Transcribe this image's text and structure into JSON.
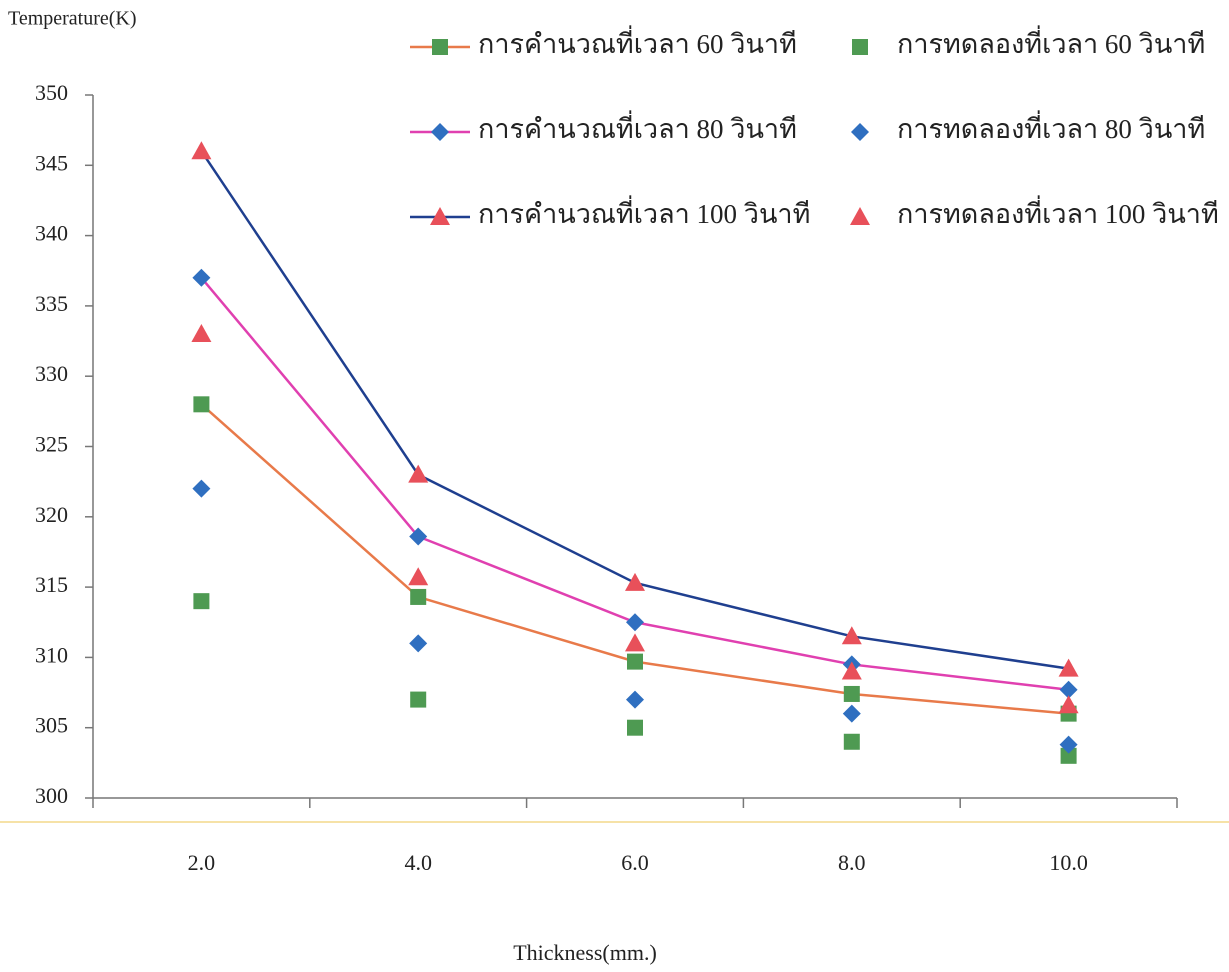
{
  "chart_data": {
    "type": "line",
    "y_label": "Temperature(K)",
    "x_label": "Thickness(mm.)",
    "categories": [
      "2.0",
      "4.0",
      "6.0",
      "8.0",
      "10.0"
    ],
    "ylim": [
      300,
      350
    ],
    "yticks": [
      300,
      305,
      310,
      315,
      320,
      325,
      330,
      335,
      340,
      345,
      350
    ],
    "series": [
      {
        "name": "การคำนวณที่เวลา 60 วินาที",
        "line": true,
        "line_color": "#e87a4a",
        "color": "#4e9a52",
        "marker": "square",
        "values": [
          328,
          314.3,
          309.7,
          307.4,
          306.0
        ]
      },
      {
        "name": "การทดลองที่เวลา 60 วินาที",
        "line": false,
        "color": "#4e9a52",
        "marker": "square",
        "values": [
          314,
          307,
          305,
          304,
          303
        ]
      },
      {
        "name": "การคำนวณที่เวลา 80 วินาที",
        "line": true,
        "line_color": "#e040b0",
        "color": "#2f6fc0",
        "marker": "diamond",
        "values": [
          337,
          318.6,
          312.5,
          309.5,
          307.7
        ]
      },
      {
        "name": "การทดลองที่เวลา 80 วินาที",
        "line": false,
        "color": "#2f6fc0",
        "marker": "diamond",
        "values": [
          322,
          311,
          307,
          306,
          303.8
        ]
      },
      {
        "name": "การคำนวณที่เวลา 100 วินาที",
        "line": true,
        "line_color": "#1f3f8f",
        "color": "#e8505a",
        "marker": "triangle",
        "values": [
          346,
          323,
          315.3,
          311.5,
          309.2
        ]
      },
      {
        "name": "การทดลองที่เวลา 100 วินาที",
        "line": false,
        "color": "#e8505a",
        "marker": "triangle",
        "values": [
          333,
          315.7,
          311,
          309,
          306.6
        ]
      }
    ]
  }
}
